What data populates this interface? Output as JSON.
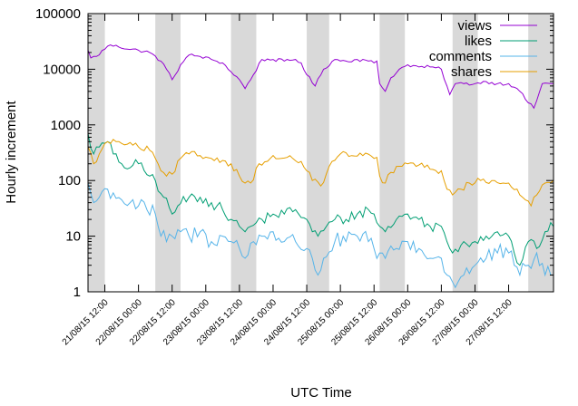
{
  "chart_data": {
    "type": "line",
    "title": "",
    "xlabel": "UTC Time",
    "ylabel": "Hourly increment",
    "yscale": "log",
    "ylim": [
      1,
      100000
    ],
    "xlim_hours": [
      0,
      166
    ],
    "x_unit": "hours since 21/08/15 06:00 UTC",
    "y_ticks": [
      {
        "value": 1,
        "label": "1"
      },
      {
        "value": 10,
        "label": "10"
      },
      {
        "value": 100,
        "label": "100"
      },
      {
        "value": 1000,
        "label": "1000"
      },
      {
        "value": 10000,
        "label": "10000"
      },
      {
        "value": 100000,
        "label": "100000"
      }
    ],
    "x_ticks": [
      {
        "hour": 6,
        "label": "21/08/15 12:00"
      },
      {
        "hour": 18,
        "label": "22/08/15 00:00"
      },
      {
        "hour": 30,
        "label": "22/08/15 12:00"
      },
      {
        "hour": 42,
        "label": "23/08/15 00:00"
      },
      {
        "hour": 54,
        "label": "23/08/15 12:00"
      },
      {
        "hour": 66,
        "label": "24/08/15 00:00"
      },
      {
        "hour": 78,
        "label": "24/08/15 12:00"
      },
      {
        "hour": 90,
        "label": "25/08/15 00:00"
      },
      {
        "hour": 102,
        "label": "25/08/15 12:00"
      },
      {
        "hour": 114,
        "label": "26/08/15 00:00"
      },
      {
        "hour": 126,
        "label": "26/08/15 12:00"
      },
      {
        "hour": 138,
        "label": "27/08/15 00:00"
      },
      {
        "hour": 150,
        "label": "27/08/15 12:00"
      }
    ],
    "shaded_night_bands_hours": [
      [
        0,
        6
      ],
      [
        24,
        33
      ],
      [
        51,
        60
      ],
      [
        78,
        86
      ],
      [
        104,
        113
      ],
      [
        130,
        139
      ],
      [
        157,
        166
      ]
    ],
    "legend_position": "top-right",
    "series": [
      {
        "name": "views",
        "color": "#9400d3",
        "anchors": [
          [
            0,
            22000
          ],
          [
            1,
            16000
          ],
          [
            3,
            17000
          ],
          [
            7,
            26000
          ],
          [
            10,
            27000
          ],
          [
            14,
            23000
          ],
          [
            18,
            22000
          ],
          [
            22,
            20000
          ],
          [
            26,
            14000
          ],
          [
            28,
            10000
          ],
          [
            30,
            6500
          ],
          [
            33,
            12000
          ],
          [
            36,
            18000
          ],
          [
            40,
            17000
          ],
          [
            44,
            15000
          ],
          [
            48,
            13000
          ],
          [
            51,
            9000
          ],
          [
            54,
            6500
          ],
          [
            56,
            4500
          ],
          [
            59,
            8000
          ],
          [
            62,
            15000
          ],
          [
            66,
            15000
          ],
          [
            70,
            14000
          ],
          [
            74,
            15000
          ],
          [
            76,
            13000
          ],
          [
            78,
            8000
          ],
          [
            81,
            5000
          ],
          [
            84,
            10000
          ],
          [
            88,
            15000
          ],
          [
            92,
            14000
          ],
          [
            96,
            15000
          ],
          [
            100,
            14000
          ],
          [
            102,
            13000
          ],
          [
            103,
            14000
          ],
          [
            104,
            5500
          ],
          [
            106,
            4000
          ],
          [
            108,
            7000
          ],
          [
            111,
            10000
          ],
          [
            114,
            12000
          ],
          [
            118,
            11000
          ],
          [
            122,
            11000
          ],
          [
            126,
            10000
          ],
          [
            128,
            5000
          ],
          [
            129,
            3500
          ],
          [
            131,
            5500
          ],
          [
            134,
            5500
          ],
          [
            138,
            5500
          ],
          [
            142,
            6000
          ],
          [
            146,
            5500
          ],
          [
            150,
            5500
          ],
          [
            153,
            4500
          ],
          [
            154,
            4000
          ],
          [
            157,
            2500
          ],
          [
            159,
            2000
          ],
          [
            162,
            5500
          ],
          [
            166,
            5500
          ]
        ]
      },
      {
        "name": "likes",
        "color": "#009e73",
        "anchors": [
          [
            0,
            700
          ],
          [
            2,
            300
          ],
          [
            4,
            400
          ],
          [
            7,
            500
          ],
          [
            9,
            300
          ],
          [
            12,
            200
          ],
          [
            15,
            170
          ],
          [
            18,
            200
          ],
          [
            22,
            120
          ],
          [
            24,
            100
          ],
          [
            27,
            50
          ],
          [
            30,
            25
          ],
          [
            32,
            35
          ],
          [
            36,
            50
          ],
          [
            40,
            50
          ],
          [
            44,
            40
          ],
          [
            48,
            30
          ],
          [
            51,
            20
          ],
          [
            54,
            15
          ],
          [
            56,
            12
          ],
          [
            58,
            15
          ],
          [
            62,
            20
          ],
          [
            66,
            25
          ],
          [
            70,
            25
          ],
          [
            74,
            30
          ],
          [
            78,
            20
          ],
          [
            80,
            12
          ],
          [
            82,
            10
          ],
          [
            85,
            15
          ],
          [
            88,
            20
          ],
          [
            92,
            20
          ],
          [
            96,
            25
          ],
          [
            100,
            30
          ],
          [
            102,
            25
          ],
          [
            104,
            15
          ],
          [
            106,
            12
          ],
          [
            110,
            20
          ],
          [
            114,
            25
          ],
          [
            118,
            20
          ],
          [
            122,
            15
          ],
          [
            126,
            15
          ],
          [
            128,
            8
          ],
          [
            130,
            5
          ],
          [
            134,
            8
          ],
          [
            138,
            8
          ],
          [
            142,
            10
          ],
          [
            146,
            12
          ],
          [
            150,
            10
          ],
          [
            152,
            5
          ],
          [
            154,
            3
          ],
          [
            157,
            8
          ],
          [
            160,
            6
          ],
          [
            163,
            12
          ],
          [
            166,
            15
          ]
        ]
      },
      {
        "name": "comments",
        "color": "#56b4e9",
        "anchors": [
          [
            0,
            90
          ],
          [
            2,
            40
          ],
          [
            4,
            50
          ],
          [
            7,
            70
          ],
          [
            9,
            60
          ],
          [
            12,
            45
          ],
          [
            15,
            40
          ],
          [
            18,
            35
          ],
          [
            21,
            30
          ],
          [
            24,
            25
          ],
          [
            26,
            10
          ],
          [
            28,
            8
          ],
          [
            30,
            10
          ],
          [
            33,
            12
          ],
          [
            36,
            10
          ],
          [
            40,
            12
          ],
          [
            44,
            8
          ],
          [
            48,
            10
          ],
          [
            51,
            8
          ],
          [
            54,
            6
          ],
          [
            56,
            4
          ],
          [
            59,
            8
          ],
          [
            62,
            10
          ],
          [
            66,
            12
          ],
          [
            70,
            8
          ],
          [
            74,
            8
          ],
          [
            78,
            6
          ],
          [
            80,
            4
          ],
          [
            82,
            2
          ],
          [
            84,
            4
          ],
          [
            88,
            8
          ],
          [
            92,
            8
          ],
          [
            96,
            10
          ],
          [
            100,
            8
          ],
          [
            102,
            6
          ],
          [
            104,
            5
          ],
          [
            106,
            4
          ],
          [
            110,
            6
          ],
          [
            114,
            8
          ],
          [
            118,
            6
          ],
          [
            122,
            4
          ],
          [
            126,
            4
          ],
          [
            128,
            2
          ],
          [
            130,
            1.5
          ],
          [
            134,
            2
          ],
          [
            138,
            3
          ],
          [
            142,
            4
          ],
          [
            146,
            5
          ],
          [
            150,
            5
          ],
          [
            152,
            3
          ],
          [
            154,
            2
          ],
          [
            157,
            3
          ],
          [
            160,
            5
          ],
          [
            163,
            2
          ],
          [
            166,
            2
          ]
        ]
      },
      {
        "name": "shares",
        "color": "#e69f00",
        "anchors": [
          [
            0,
            400
          ],
          [
            2,
            200
          ],
          [
            4,
            300
          ],
          [
            7,
            500
          ],
          [
            10,
            500
          ],
          [
            14,
            450
          ],
          [
            18,
            400
          ],
          [
            22,
            350
          ],
          [
            24,
            250
          ],
          [
            26,
            150
          ],
          [
            28,
            120
          ],
          [
            30,
            130
          ],
          [
            33,
            250
          ],
          [
            36,
            300
          ],
          [
            40,
            280
          ],
          [
            44,
            250
          ],
          [
            48,
            230
          ],
          [
            51,
            200
          ],
          [
            54,
            120
          ],
          [
            56,
            90
          ],
          [
            58,
            90
          ],
          [
            61,
            200
          ],
          [
            65,
            250
          ],
          [
            69,
            250
          ],
          [
            73,
            250
          ],
          [
            76,
            220
          ],
          [
            78,
            150
          ],
          [
            80,
            100
          ],
          [
            83,
            80
          ],
          [
            86,
            180
          ],
          [
            90,
            300
          ],
          [
            94,
            280
          ],
          [
            98,
            280
          ],
          [
            102,
            250
          ],
          [
            103,
            260
          ],
          [
            104,
            120
          ],
          [
            106,
            90
          ],
          [
            108,
            140
          ],
          [
            111,
            180
          ],
          [
            114,
            200
          ],
          [
            118,
            190
          ],
          [
            122,
            160
          ],
          [
            126,
            150
          ],
          [
            128,
            70
          ],
          [
            130,
            55
          ],
          [
            133,
            70
          ],
          [
            136,
            90
          ],
          [
            140,
            100
          ],
          [
            144,
            100
          ],
          [
            148,
            90
          ],
          [
            150,
            90
          ],
          [
            153,
            70
          ],
          [
            155,
            50
          ],
          [
            158,
            35
          ],
          [
            160,
            55
          ],
          [
            163,
            90
          ],
          [
            166,
            100
          ]
        ]
      }
    ]
  }
}
